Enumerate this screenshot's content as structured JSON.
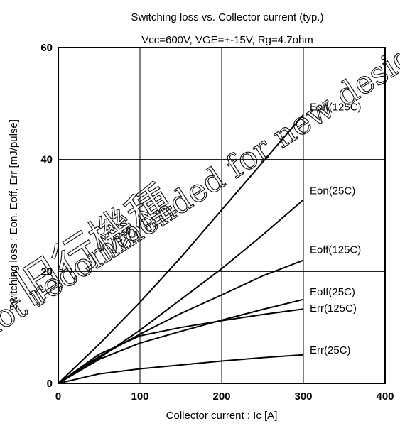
{
  "chart_data": {
    "type": "line",
    "title": "Switching loss vs. Collector current (typ.)",
    "subtitle": "Vcc=600V, VGE=+-15V, Rg=4.7ohm",
    "xlabel": "Collector current : Ic [A]",
    "ylabel": "Switching loss : Eon, Eoff, Err [mJ/pulse]",
    "xlim": [
      0,
      400
    ],
    "ylim": [
      0,
      60
    ],
    "xticks": [
      0,
      100,
      200,
      300,
      400
    ],
    "yticks": [
      0,
      20,
      40,
      60
    ],
    "grid": true,
    "series": [
      {
        "name": "Eon(125C)",
        "x": [
          0,
          50,
          100,
          150,
          200,
          250,
          300
        ],
        "y": [
          0,
          7,
          14.5,
          22.5,
          31,
          39.5,
          48
        ]
      },
      {
        "name": "Eon(25C)",
        "x": [
          0,
          50,
          100,
          150,
          200,
          250,
          300
        ],
        "y": [
          0,
          4.5,
          9.5,
          15,
          20.5,
          26.5,
          32.8
        ]
      },
      {
        "name": "Eoff(125C)",
        "x": [
          0,
          50,
          100,
          150,
          200,
          250,
          300
        ],
        "y": [
          0,
          4.8,
          8.8,
          12.5,
          15.8,
          19.2,
          22
        ]
      },
      {
        "name": "Eoff(25C)",
        "x": [
          0,
          50,
          100,
          150,
          200,
          250,
          300
        ],
        "y": [
          0,
          4.3,
          7.2,
          9.3,
          11.3,
          13.2,
          15
        ]
      },
      {
        "name": "Err(125C)",
        "x": [
          0,
          50,
          100,
          150,
          200,
          250,
          300
        ],
        "y": [
          0,
          5.2,
          8.5,
          10,
          11.2,
          12.3,
          13.3
        ]
      },
      {
        "name": "Err(25C)",
        "x": [
          0,
          50,
          100,
          150,
          200,
          250,
          300
        ],
        "y": [
          0,
          1.7,
          2.6,
          3.3,
          4,
          4.6,
          5.1
        ]
      }
    ]
  },
  "watermark": {
    "line1": "旧行機種",
    "line2": "not recommended for new design."
  }
}
